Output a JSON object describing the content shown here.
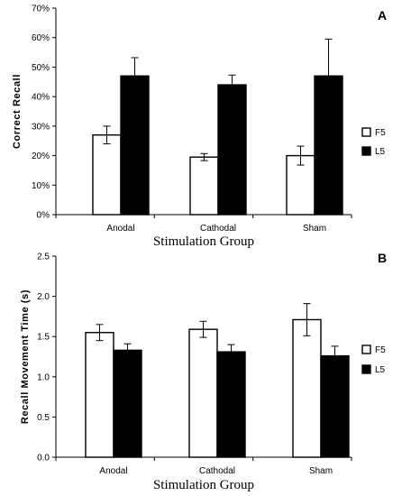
{
  "chart_data": [
    {
      "type": "bar",
      "panel_label": "A",
      "categories": [
        "Anodal",
        "Cathodal",
        "Sham"
      ],
      "xlabel": "Stimulation Group",
      "ylabel": "Correct Recall",
      "ylim": [
        0,
        0.7
      ],
      "yticks": [
        "0%",
        "10%",
        "20%",
        "30%",
        "40%",
        "50%",
        "60%",
        "70%"
      ],
      "ytick_values": [
        0,
        0.1,
        0.2,
        0.3,
        0.4,
        0.5,
        0.6,
        0.7
      ],
      "legend_position": "right",
      "series": [
        {
          "name": "F5",
          "color": "#ffffff",
          "values": [
            0.27,
            0.195,
            0.2
          ],
          "errors": [
            0.03,
            0.012,
            0.032
          ]
        },
        {
          "name": "L5",
          "color": "#000000",
          "values": [
            0.47,
            0.44,
            0.47
          ],
          "errors": [
            0.062,
            0.033,
            0.125
          ]
        }
      ]
    },
    {
      "type": "bar",
      "panel_label": "B",
      "categories": [
        "Anodal",
        "Cathodal",
        "Sham"
      ],
      "xlabel": "Stimulation Group",
      "ylabel": "Recall Movement Time (s)",
      "ylim": [
        0,
        2.5
      ],
      "yticks": [
        "0.0",
        "0.5",
        "1.0",
        "1.5",
        "2.0",
        "2.5"
      ],
      "ytick_values": [
        0,
        0.5,
        1.0,
        1.5,
        2.0,
        2.5
      ],
      "legend_position": "right",
      "series": [
        {
          "name": "F5",
          "color": "#ffffff",
          "values": [
            1.55,
            1.59,
            1.71
          ],
          "errors": [
            0.1,
            0.1,
            0.2
          ]
        },
        {
          "name": "L5",
          "color": "#000000",
          "values": [
            1.33,
            1.31,
            1.26
          ],
          "errors": [
            0.08,
            0.09,
            0.12
          ]
        }
      ]
    }
  ]
}
